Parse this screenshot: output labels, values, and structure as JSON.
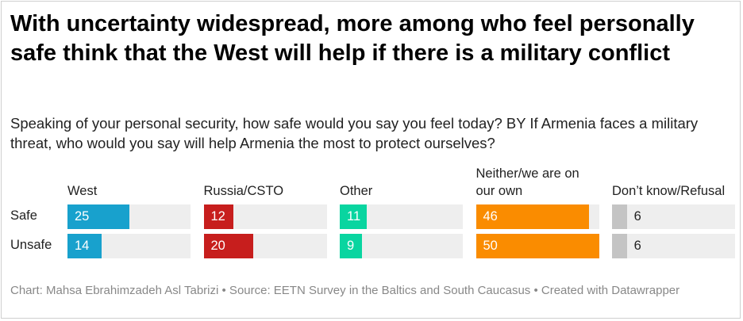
{
  "chart_data": {
    "type": "bar",
    "title": "With uncertainty widespread, more among who feel personally safe think that the West will help if there is a military conflict",
    "subtitle": "Speaking of your personal security, how safe would you say you feel today? BY If Armenia faces a military threat, who would you say will help Armenia the most to protect ourselves?",
    "categories": [
      "Safe",
      "Unsafe"
    ],
    "series": [
      {
        "name": "West",
        "color": "#18a1cd",
        "values": [
          25,
          14
        ]
      },
      {
        "name": "Russia/CSTO",
        "color": "#c71e1d",
        "values": [
          12,
          20
        ]
      },
      {
        "name": "Other",
        "color": "#09d5a0",
        "values": [
          11,
          9
        ]
      },
      {
        "name": "Neither/we are on our own",
        "color": "#fa8c00",
        "values": [
          46,
          50
        ]
      },
      {
        "name": "Don’t know/Refusal",
        "color": "#c4c4c4",
        "values": [
          6,
          6
        ]
      }
    ],
    "xlim": [
      0,
      50
    ],
    "source": "Chart: Mahsa Ebrahimzadeh Asl Tabrizi • Source: EETN Survey in the Baltics and South Caucasus • Created with Datawrapper"
  }
}
